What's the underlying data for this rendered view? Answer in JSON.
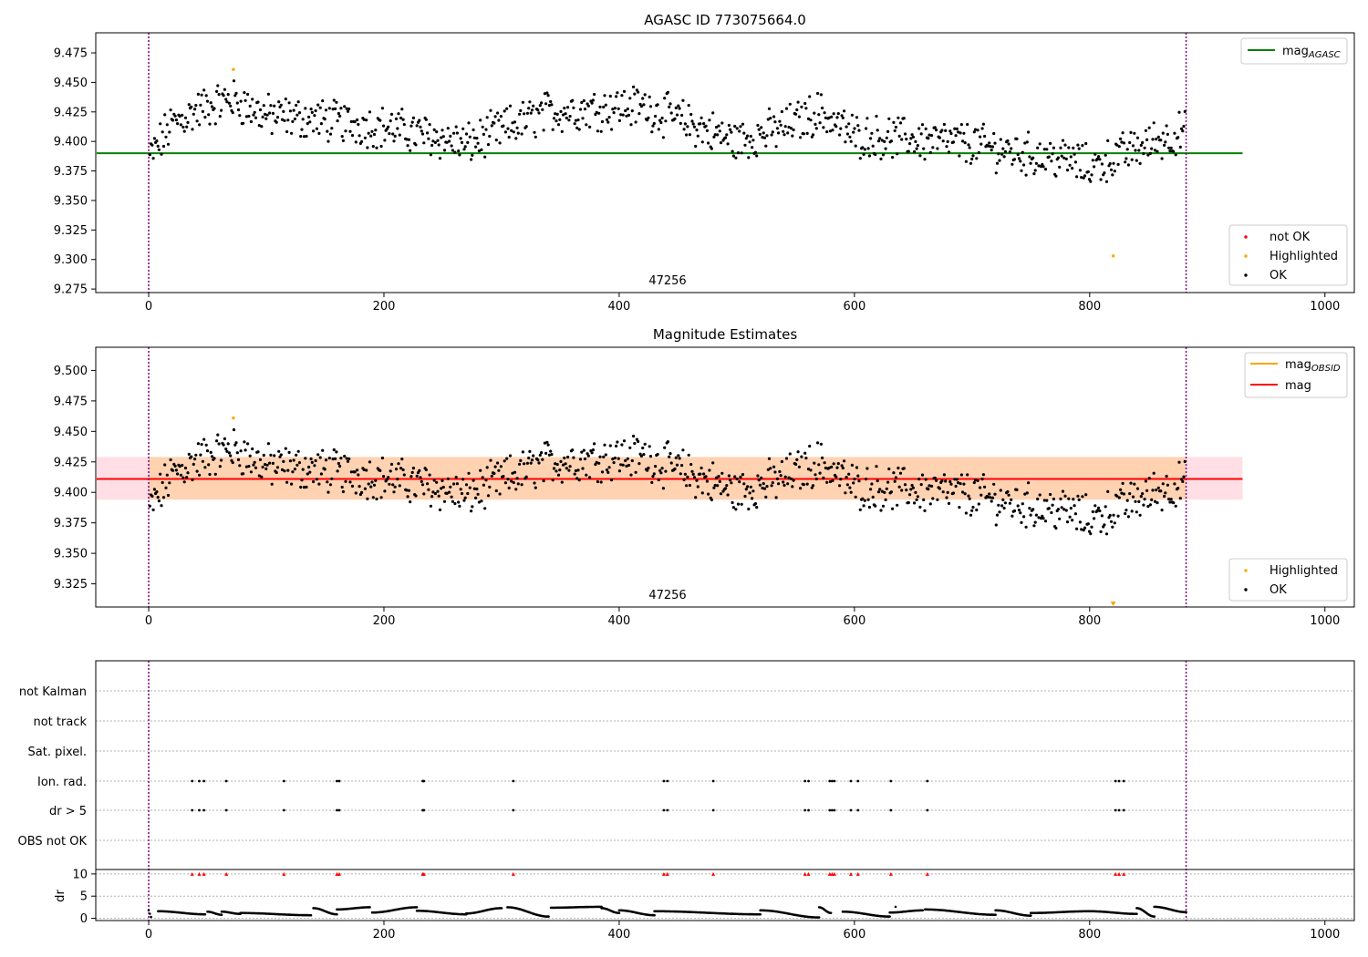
{
  "chart_data": [
    {
      "type": "scatter",
      "title": "AGASC ID 773075664.0",
      "obsid_label": "47256",
      "xlim": [
        -45,
        1025
      ],
      "ylim": [
        9.272,
        9.492
      ],
      "xticks": [
        0,
        200,
        400,
        600,
        800,
        1000
      ],
      "yticks": [
        9.275,
        9.3,
        9.325,
        9.35,
        9.375,
        9.4,
        9.425,
        9.45,
        9.475
      ],
      "vlines": [
        0,
        882
      ],
      "line": {
        "label_main": "mag",
        "label_sub": "AGASC",
        "y": 9.39,
        "x": [
          -45,
          930
        ],
        "color": "#008000"
      },
      "legend_points": [
        {
          "label": "not OK",
          "color": "#ff0000"
        },
        {
          "label": "Highlighted",
          "color": "#ffa500"
        },
        {
          "label": "OK",
          "color": "#000000"
        }
      ],
      "highlighted": [
        {
          "x": 72,
          "y": 9.461
        },
        {
          "x": 820,
          "y": 9.303
        }
      ],
      "trend": [
        [
          0,
          9.385
        ],
        [
          20,
          9.415
        ],
        [
          45,
          9.428
        ],
        [
          70,
          9.436
        ],
        [
          100,
          9.422
        ],
        [
          150,
          9.418
        ],
        [
          200,
          9.412
        ],
        [
          240,
          9.405
        ],
        [
          270,
          9.397
        ],
        [
          300,
          9.41
        ],
        [
          340,
          9.425
        ],
        [
          380,
          9.428
        ],
        [
          420,
          9.43
        ],
        [
          460,
          9.415
        ],
        [
          500,
          9.4
        ],
        [
          540,
          9.412
        ],
        [
          570,
          9.425
        ],
        [
          600,
          9.405
        ],
        [
          650,
          9.402
        ],
        [
          700,
          9.398
        ],
        [
          740,
          9.39
        ],
        [
          780,
          9.385
        ],
        [
          800,
          9.378
        ],
        [
          830,
          9.39
        ],
        [
          860,
          9.402
        ],
        [
          882,
          9.408
        ]
      ]
    },
    {
      "type": "scatter",
      "title": "Magnitude Estimates",
      "obsid_label": "47256",
      "xlim": [
        -45,
        1025
      ],
      "ylim": [
        9.306,
        9.519
      ],
      "xticks": [
        0,
        200,
        400,
        600,
        800,
        1000
      ],
      "yticks": [
        9.325,
        9.35,
        9.375,
        9.4,
        9.425,
        9.45,
        9.475,
        9.5
      ],
      "vlines": [
        0,
        882
      ],
      "band": {
        "lo": 9.394,
        "hi": 9.429,
        "x": [
          -45,
          930
        ]
      },
      "lines": [
        {
          "label_main": "mag",
          "label_sub": "OBSID",
          "color": "#ffa500",
          "y": 9.411
        },
        {
          "label_main": "mag",
          "label_sub": "",
          "color": "#ff0000",
          "y": 9.411
        }
      ],
      "legend_points": [
        {
          "label": "Highlighted",
          "color": "#ffa500"
        },
        {
          "label": "OK",
          "color": "#000000"
        }
      ],
      "highlighted": [
        {
          "x": 72,
          "y": 9.461
        }
      ],
      "offscale_marker": {
        "x": 820,
        "color": "#ffa500"
      },
      "trend": [
        [
          0,
          9.385
        ],
        [
          20,
          9.415
        ],
        [
          45,
          9.428
        ],
        [
          70,
          9.436
        ],
        [
          100,
          9.422
        ],
        [
          150,
          9.418
        ],
        [
          200,
          9.412
        ],
        [
          240,
          9.405
        ],
        [
          270,
          9.397
        ],
        [
          300,
          9.41
        ],
        [
          340,
          9.425
        ],
        [
          380,
          9.428
        ],
        [
          420,
          9.43
        ],
        [
          460,
          9.415
        ],
        [
          500,
          9.4
        ],
        [
          540,
          9.412
        ],
        [
          570,
          9.425
        ],
        [
          600,
          9.405
        ],
        [
          650,
          9.402
        ],
        [
          700,
          9.398
        ],
        [
          740,
          9.39
        ],
        [
          780,
          9.385
        ],
        [
          800,
          9.378
        ],
        [
          830,
          9.39
        ],
        [
          860,
          9.402
        ],
        [
          882,
          9.408
        ]
      ]
    },
    {
      "type": "scatter",
      "title": "",
      "xlim": [
        -45,
        1025
      ],
      "xticks": [
        0,
        200,
        400,
        600,
        800,
        1000
      ],
      "vlines": [
        0,
        882
      ],
      "flag_rows": [
        "not Kalman",
        "not track",
        "Sat. pixel.",
        "Ion. rad.",
        "dr > 5",
        "OBS not OK"
      ],
      "flag_x": [
        37,
        43,
        47,
        66,
        115,
        160,
        162,
        233,
        234,
        310,
        438,
        441,
        480,
        558,
        561,
        579,
        581,
        583,
        597,
        603,
        631,
        662,
        822,
        825,
        829
      ],
      "flagged_rows": [
        "Ion. rad.",
        "dr > 5"
      ],
      "dr": {
        "ylabel": "dr",
        "ylim": [
          -0.5,
          11
        ],
        "yticks": [
          0,
          5,
          10
        ],
        "segments": [
          [
            0,
            2,
            1.8,
            0.3
          ],
          [
            8,
            48,
            1.6,
            0.9
          ],
          [
            50,
            62,
            1.5,
            0.8
          ],
          [
            62,
            78,
            1.5,
            1.0
          ],
          [
            78,
            138,
            1.2,
            0.7
          ],
          [
            140,
            160,
            2.3,
            0.9
          ],
          [
            160,
            188,
            2.0,
            2.5
          ],
          [
            190,
            228,
            1.3,
            2.5
          ],
          [
            228,
            270,
            1.7,
            0.9
          ],
          [
            270,
            300,
            1.1,
            2.3
          ],
          [
            305,
            340,
            2.5,
            0.4
          ],
          [
            342,
            385,
            2.4,
            2.6
          ],
          [
            385,
            400,
            2.3,
            1.2
          ],
          [
            400,
            430,
            1.8,
            0.7
          ],
          [
            430,
            520,
            1.6,
            0.9
          ],
          [
            520,
            570,
            1.8,
            0.2
          ],
          [
            570,
            580,
            2.5,
            1.2
          ],
          [
            590,
            630,
            1.5,
            0.4
          ],
          [
            630,
            658,
            1.3,
            1.8
          ],
          [
            660,
            720,
            2.0,
            0.8
          ],
          [
            720,
            750,
            1.8,
            0.6
          ],
          [
            750,
            800,
            1.2,
            1.6
          ],
          [
            800,
            840,
            1.6,
            1.0
          ],
          [
            840,
            855,
            2.3,
            0.4
          ],
          [
            855,
            882,
            2.6,
            1.4
          ]
        ],
        "outlier": {
          "x": 635,
          "y": 2.6
        },
        "clip_markers_y": 10
      }
    }
  ]
}
